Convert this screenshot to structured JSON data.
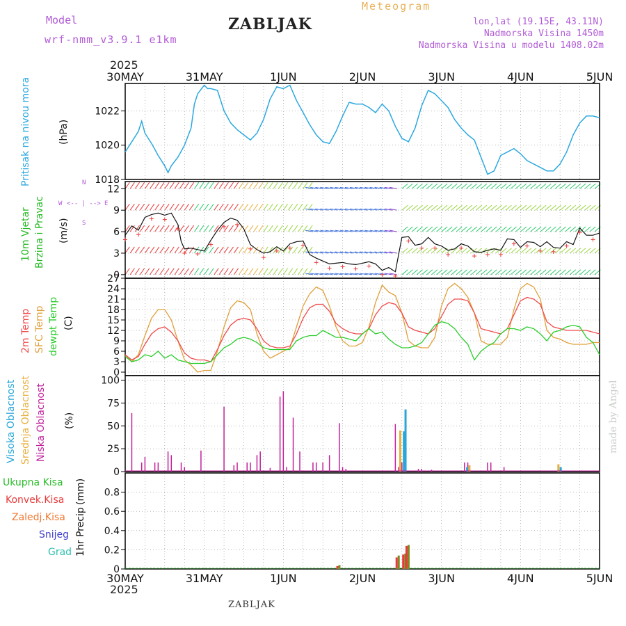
{
  "header": {
    "model_label": "Model",
    "model_name": "wrf-nmm_v3.9.1 e1km",
    "station": "ZABLJAK",
    "product": "Meteogram",
    "coords": "lon,lat (19.15E, 43.11N)",
    "elevation": "Nadmorska Visina 1450m",
    "model_elevation": "Nadmorska Visina u modelu 1408.02m",
    "year_top": "2025",
    "year_bottom": "2025",
    "footer_station": "ZABLJAK",
    "signature": "made by Angel"
  },
  "colors": {
    "pressure": "#2ba8e0",
    "temp2m": "#f04a4a",
    "sfc_temp": "#e0a03a",
    "dewpt": "#2bcc2b",
    "cloud_high": "#2aa6d8",
    "cloud_mid": "#e8b040",
    "cloud_low": "#c0209a",
    "precip_total": "#2bbd2b",
    "precip_conv": "#e83a3a",
    "precip_strat": "#f07830",
    "snow": "#4040d0",
    "hail": "#30c0b0",
    "wind_speed": "#111111",
    "gust": "#e83a3a"
  },
  "chart_data": [
    {
      "type": "line",
      "panel": "pressure",
      "ylabel_main": "Pritisak na nivou mora",
      "ylabel_unit": "(hPa)",
      "ylim": [
        1018,
        1023.6
      ],
      "yticks": [
        1018,
        1020,
        1022
      ],
      "x_ticks": [
        "30MAY",
        "31MAY",
        "1JUN",
        "2JUN",
        "3JUN",
        "4JUN",
        "5JUN"
      ],
      "x_range_hours": [
        0,
        144
      ],
      "grid": true,
      "series": [
        {
          "x": [
            0,
            2,
            4,
            5,
            6,
            8,
            10,
            12,
            13,
            14,
            16,
            18,
            20,
            21,
            22,
            24,
            25,
            26,
            28,
            30,
            32,
            34,
            36,
            38,
            40,
            42,
            44,
            46,
            48,
            50,
            52,
            54,
            56,
            58,
            60,
            62,
            64,
            66,
            68,
            70,
            72,
            74,
            76,
            78,
            80,
            82,
            84,
            86,
            88,
            90,
            92,
            94,
            96,
            98,
            100,
            102,
            104,
            106,
            108,
            110,
            112,
            114,
            116,
            118,
            120,
            122,
            124,
            126,
            128,
            130,
            132,
            134,
            136,
            138,
            140,
            142,
            144
          ],
          "values": [
            1019.6,
            1020.2,
            1020.8,
            1021.4,
            1020.7,
            1020.1,
            1019.4,
            1018.8,
            1018.4,
            1018.8,
            1019.3,
            1020.0,
            1021.0,
            1022.4,
            1023.0,
            1023.5,
            1023.3,
            1023.3,
            1023.2,
            1022.0,
            1021.3,
            1020.9,
            1020.6,
            1020.3,
            1020.7,
            1021.5,
            1022.7,
            1023.4,
            1023.3,
            1023.5,
            1022.6,
            1021.9,
            1021.2,
            1020.6,
            1020.2,
            1020.1,
            1020.8,
            1021.7,
            1022.5,
            1022.4,
            1022.4,
            1022.2,
            1021.9,
            1022.4,
            1022.0,
            1021.1,
            1020.4,
            1020.2,
            1021.0,
            1022.3,
            1023.2,
            1023.0,
            1022.6,
            1022.2,
            1021.5,
            1021.0,
            1020.6,
            1020.3,
            1019.3,
            1018.3,
            1018.5,
            1019.4,
            1019.6,
            1019.8,
            1019.5,
            1019.1,
            1018.9,
            1018.7,
            1018.5,
            1018.5,
            1018.9,
            1019.6,
            1020.6,
            1021.3,
            1021.7,
            1021.7,
            1021.6
          ]
        }
      ]
    },
    {
      "type": "line",
      "panel": "wind",
      "ylabel_main": "10m Vjetar",
      "ylabel_main2": "Brzina i Pravac",
      "ylabel_unit": "(m/s)",
      "compass_labels": [
        "N",
        "S",
        "W",
        "E"
      ],
      "compass_arrow_text": "<-- | -->",
      "ylim": [
        -0.5,
        13
      ],
      "yticks": [
        0,
        3,
        6,
        9,
        12
      ],
      "x_range_hours": [
        0,
        144
      ],
      "grid": true,
      "series": [
        {
          "name": "wind_speed",
          "x": [
            0,
            2,
            4,
            6,
            8,
            10,
            12,
            14,
            16,
            17,
            18,
            20,
            22,
            24,
            26,
            28,
            30,
            32,
            34,
            36,
            38,
            40,
            42,
            44,
            46,
            48,
            50,
            52,
            54,
            56,
            58,
            60,
            62,
            64,
            66,
            68,
            70,
            72,
            74,
            76,
            78,
            80,
            82,
            84,
            86,
            88,
            90,
            92,
            94,
            96,
            98,
            100,
            102,
            104,
            106,
            108,
            110,
            112,
            114,
            116,
            118,
            120,
            122,
            124,
            126,
            128,
            130,
            132,
            134,
            136,
            138,
            140,
            142,
            144
          ],
          "values": [
            5.5,
            6.8,
            6.2,
            8.0,
            8.4,
            8.6,
            8.3,
            8.6,
            7.0,
            4.6,
            3.6,
            3.7,
            3.5,
            3.3,
            4.8,
            6.2,
            7.3,
            7.9,
            7.6,
            6.4,
            4.2,
            3.5,
            3.0,
            3.2,
            3.9,
            3.3,
            4.3,
            4.6,
            4.7,
            2.8,
            2.3,
            1.9,
            1.5,
            1.6,
            1.7,
            1.5,
            1.4,
            1.6,
            1.8,
            1.5,
            0.6,
            1.0,
            0.4,
            5.2,
            5.3,
            4.1,
            4.3,
            5.2,
            4.3,
            4.0,
            3.4,
            3.6,
            4.3,
            4.0,
            3.2,
            3.1,
            3.4,
            3.6,
            3.4,
            5.0,
            4.9,
            3.8,
            4.6,
            4.5,
            3.9,
            4.6,
            3.8,
            3.7,
            4.6,
            4.2,
            6.5,
            5.5,
            5.5,
            5.8
          ]
        }
      ]
    },
    {
      "type": "line",
      "panel": "temperature",
      "ylabel_main": "2m Temp",
      "ylabel_main2": "SFC Temp",
      "ylabel_main3": "dewpt Temp",
      "ylabel_unit": "(C)",
      "ylim": [
        -1,
        27
      ],
      "yticks": [
        0,
        3,
        6,
        9,
        12,
        15,
        18,
        21,
        24,
        27
      ],
      "x_range_hours": [
        0,
        144
      ],
      "grid": true,
      "series": [
        {
          "name": "2m Temp",
          "x": [
            0,
            2,
            4,
            6,
            8,
            10,
            12,
            14,
            16,
            18,
            20,
            22,
            24,
            26,
            28,
            30,
            32,
            34,
            36,
            38,
            40,
            42,
            44,
            46,
            48,
            50,
            52,
            54,
            56,
            58,
            60,
            62,
            64,
            66,
            68,
            70,
            72,
            74,
            76,
            78,
            80,
            82,
            84,
            86,
            88,
            90,
            92,
            94,
            96,
            98,
            100,
            102,
            104,
            106,
            108,
            110,
            112,
            114,
            116,
            118,
            120,
            122,
            124,
            126,
            128,
            130,
            132,
            134,
            136,
            138,
            140,
            142,
            144
          ],
          "values": [
            5,
            3.5,
            4.5,
            8,
            11,
            12.5,
            13,
            11.5,
            9,
            5.5,
            4,
            3.5,
            3.5,
            3,
            6.5,
            10.5,
            13.5,
            15,
            15.5,
            15,
            12.5,
            9,
            7.5,
            7,
            7,
            7.5,
            11,
            15.5,
            18.5,
            19.5,
            19.5,
            17.5,
            14,
            12.5,
            11.5,
            11,
            11,
            12.5,
            16.5,
            19,
            20,
            19.5,
            17,
            13,
            12,
            11.5,
            11,
            12.5,
            16,
            19.5,
            21,
            21,
            20.5,
            17,
            12.5,
            12,
            11.5,
            11,
            12.5,
            16.5,
            20.5,
            21.5,
            21,
            19.5,
            14.5,
            13,
            12.5,
            12,
            12,
            12,
            12,
            11.5,
            11
          ]
        },
        {
          "name": "SFC Temp",
          "x": [
            0,
            2,
            4,
            6,
            8,
            10,
            12,
            14,
            16,
            18,
            20,
            22,
            24,
            26,
            28,
            30,
            32,
            34,
            36,
            38,
            40,
            42,
            44,
            46,
            48,
            50,
            52,
            54,
            56,
            58,
            60,
            62,
            64,
            66,
            68,
            70,
            72,
            74,
            76,
            78,
            80,
            82,
            84,
            86,
            88,
            90,
            92,
            94,
            96,
            98,
            100,
            102,
            104,
            106,
            108,
            110,
            112,
            114,
            116,
            118,
            120,
            122,
            124,
            126,
            128,
            130,
            132,
            134,
            136,
            138,
            140,
            142,
            144
          ],
          "values": [
            5,
            3,
            5,
            10.5,
            15.5,
            18,
            18,
            15,
            9,
            3.5,
            2,
            0,
            0.5,
            0.5,
            6,
            13,
            18.5,
            20.5,
            20,
            18,
            11,
            6,
            4,
            5,
            6,
            7,
            13,
            19,
            22.5,
            24.5,
            23.5,
            19,
            13,
            9,
            7.5,
            7.5,
            8.5,
            13,
            20,
            25,
            23,
            22,
            17,
            9,
            7.5,
            7,
            7,
            10,
            19,
            24,
            25.5,
            24,
            21.5,
            17,
            9,
            8,
            8,
            8,
            10,
            18,
            24,
            25.5,
            24.5,
            21,
            12,
            10,
            9.5,
            8.5,
            8,
            8,
            8,
            8.5,
            8.5
          ]
        },
        {
          "name": "dewpt Temp",
          "x": [
            0,
            2,
            4,
            6,
            8,
            10,
            12,
            14,
            16,
            18,
            20,
            22,
            24,
            26,
            28,
            30,
            32,
            34,
            36,
            38,
            40,
            42,
            44,
            46,
            48,
            50,
            52,
            54,
            56,
            58,
            60,
            62,
            64,
            66,
            68,
            70,
            72,
            74,
            76,
            78,
            80,
            82,
            84,
            86,
            88,
            90,
            92,
            94,
            96,
            98,
            100,
            102,
            104,
            106,
            108,
            110,
            112,
            114,
            116,
            118,
            120,
            122,
            124,
            126,
            128,
            130,
            132,
            134,
            136,
            138,
            140,
            142,
            144
          ],
          "values": [
            4.5,
            3,
            3.5,
            5,
            4.5,
            6,
            4,
            5,
            3.5,
            3,
            2.5,
            2.5,
            2.5,
            3,
            5,
            7,
            8,
            9.5,
            10,
            9.5,
            8.5,
            7,
            6.5,
            6.5,
            6.5,
            6.5,
            9,
            10,
            10.5,
            10.5,
            12,
            11,
            10,
            10,
            9.5,
            9,
            11,
            12.5,
            11,
            11.5,
            9.5,
            8,
            7,
            7,
            7.5,
            8.5,
            11,
            13.5,
            14.5,
            14,
            12.5,
            10,
            8,
            3.5,
            6,
            7.5,
            8.5,
            11,
            12.5,
            12.5,
            12,
            13,
            12.5,
            11,
            9,
            11.5,
            12,
            13,
            13.5,
            13,
            10,
            8.5,
            5
          ]
        }
      ]
    },
    {
      "type": "bar",
      "panel": "cloud",
      "ylabel_main": "Visoka Oblacnost",
      "ylabel_main2": "Srednja Oblacnost",
      "ylabel_main3": "Niska Oblacnost",
      "ylabel_unit": "(%)",
      "ylim": [
        0,
        105
      ],
      "yticks": [
        0,
        25,
        50,
        75,
        100
      ],
      "x_range_hours": [
        0,
        144
      ],
      "grid": true,
      "series": [
        {
          "name": "Niska",
          "x": [
            2,
            5,
            6,
            9,
            10,
            13,
            14,
            17,
            18,
            23,
            30,
            33,
            34,
            37,
            38,
            40,
            41,
            44,
            47,
            48,
            49,
            51,
            53,
            57,
            58,
            60,
            62,
            65,
            66,
            67,
            82,
            83,
            84,
            89,
            90,
            93,
            103,
            104,
            110,
            111,
            115
          ],
          "values": [
            64,
            10,
            16,
            10,
            10,
            22,
            18,
            10,
            5,
            23,
            71,
            7,
            10,
            10,
            10,
            18,
            22,
            4,
            82,
            88,
            5,
            59,
            22,
            10,
            10,
            10,
            18,
            53,
            5,
            3,
            52,
            5,
            10,
            3,
            3,
            2,
            10,
            10,
            10,
            10,
            5
          ]
        },
        {
          "name": "Srednja",
          "x": [
            83.5,
            104.5,
            131.5
          ],
          "values": [
            45,
            7,
            8
          ]
        },
        {
          "name": "Visoka",
          "x": [
            84.6,
            85.1,
            103.8,
            132.2
          ],
          "values": [
            44,
            68,
            5,
            5
          ]
        }
      ]
    },
    {
      "type": "bar",
      "panel": "precip",
      "ylabel_main": "1hr Precip",
      "ylabel_unit": "(mm)",
      "ylim": [
        0,
        1
      ],
      "yticks": [
        0,
        0.2,
        0.4,
        0.6,
        0.8
      ],
      "x_range_hours": [
        0,
        144
      ],
      "grid": true,
      "legend": [
        "Ukupna Kisa",
        "Konvek.Kisa",
        "Zaledj.Kisa",
        "Snijeg",
        "Grad"
      ],
      "series": [
        {
          "name": "Ukupna Kisa",
          "x": [
            64.5,
            82.5,
            84.5,
            85.5
          ],
          "values": [
            0.04,
            0.14,
            0.16,
            0.25
          ]
        },
        {
          "name": "Konvek.Kisa",
          "x": [
            64.5,
            82.5,
            84.5,
            85.5
          ],
          "values": [
            0.03,
            0.12,
            0.15,
            0.24
          ]
        }
      ]
    }
  ]
}
